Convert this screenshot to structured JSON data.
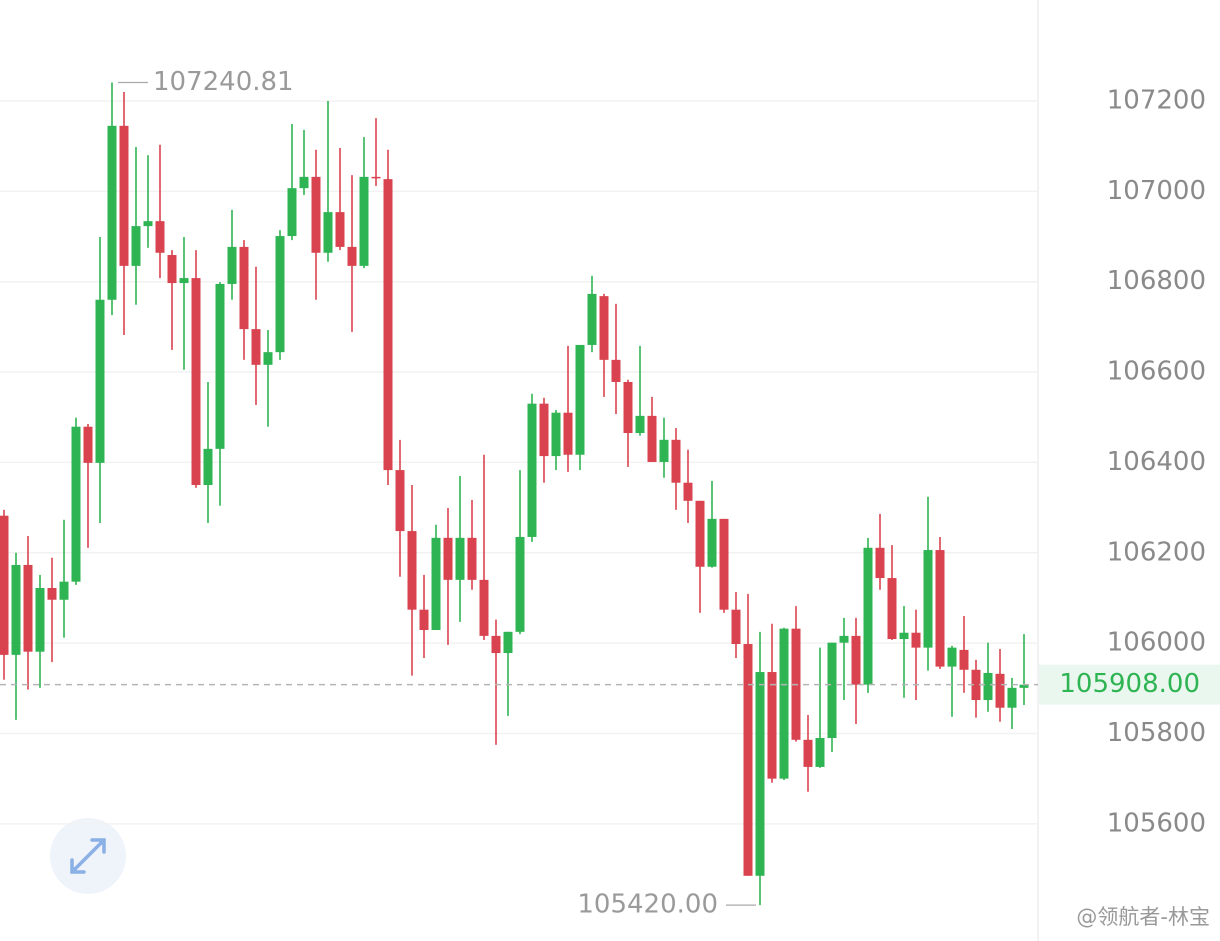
{
  "chart_data": {
    "type": "candlestick",
    "open": [
      106282,
      105974,
      106173,
      105981,
      106122,
      106096,
      106136,
      106479,
      106399,
      106760,
      107145,
      106835,
      106923,
      106934,
      106859,
      106797,
      106808,
      106350,
      106430,
      106795,
      106877,
      106695,
      106616,
      106644,
      106901,
      107007,
      107032,
      106864,
      106954,
      106877,
      106835,
      107032,
      107027,
      106383,
      106248,
      106074,
      106029,
      106233,
      106140,
      106233,
      106140,
      106016,
      105978,
      106025,
      106235,
      106530,
      106414,
      106510,
      106417,
      106660,
      106768,
      106627,
      106578,
      106465,
      106503,
      106401,
      106450,
      106355,
      106315,
      106169,
      106275,
      106074,
      105998,
      105485,
      105936,
      105700,
      106032,
      105786,
      105726,
      105790,
      106001,
      106016,
      105908,
      106211,
      106144,
      106009,
      106023,
      105990,
      106206,
      105948,
      105985,
      105941,
      105874,
      105932,
      105857,
      105901
    ],
    "high": [
      106295,
      106200,
      106237,
      106151,
      106189,
      106273,
      106499,
      106485,
      106899,
      107240.81,
      107220,
      107098,
      107080,
      107103,
      106870,
      106899,
      106870,
      106578,
      106799,
      106959,
      106892,
      106833,
      106693,
      106914,
      107149,
      107136,
      107092,
      107200,
      107096,
      107036,
      107120,
      107162,
      107092,
      106450,
      106350,
      106151,
      106262,
      106299,
      106370,
      106317,
      106417,
      106052,
      106025,
      106383,
      106552,
      106543,
      106516,
      106658,
      106660,
      106813,
      106773,
      106751,
      106583,
      106658,
      106545,
      106499,
      106476,
      106428,
      106315,
      106359,
      106275,
      106113,
      106109,
      106025,
      106043,
      106034,
      106082,
      105841,
      105990,
      106001,
      106056,
      106056,
      106233,
      106286,
      106217,
      106082,
      106074,
      106324,
      106235,
      105994,
      106060,
      105963,
      106001,
      105987,
      105923,
      106020
    ],
    "low": [
      105919,
      105830,
      105897,
      105901,
      105958,
      106012,
      106129,
      106211,
      106266,
      106726,
      106682,
      106749,
      106875,
      106808,
      106649,
      106605,
      106344,
      106266,
      106304,
      106760,
      106627,
      106527,
      106479,
      106627,
      106892,
      106992,
      106760,
      106844,
      106870,
      106689,
      106830,
      107012,
      106350,
      106147,
      105928,
      105967,
      106029,
      105996,
      106047,
      106118,
      106007,
      105775,
      105839,
      106020,
      106224,
      106355,
      106383,
      106379,
      106383,
      106644,
      106545,
      106507,
      106390,
      106459,
      106401,
      106366,
      106295,
      106266,
      106067,
      106167,
      106067,
      105967,
      105485,
      105420,
      105691,
      105697,
      105782,
      105671,
      105724,
      105759,
      105874,
      105821,
      105890,
      106118,
      106007,
      105879,
      105874,
      105939,
      105943,
      105837,
      105890,
      105835,
      105848,
      105826,
      105810,
      105863
    ],
    "close": [
      105974,
      106173,
      105981,
      106122,
      106096,
      106136,
      106479,
      106399,
      106760,
      107145,
      106835,
      106923,
      106934,
      106864,
      106797,
      106808,
      106350,
      106430,
      106795,
      106877,
      106695,
      106616,
      106644,
      106901,
      107007,
      107032,
      106864,
      106954,
      106877,
      106835,
      107032,
      107030,
      106383,
      106248,
      106074,
      106029,
      106233,
      106140,
      106233,
      106140,
      106016,
      105978,
      106025,
      106235,
      106530,
      106414,
      106510,
      106417,
      106660,
      106773,
      106627,
      106578,
      106465,
      106503,
      106401,
      106450,
      106355,
      106315,
      106169,
      106275,
      106074,
      105998,
      105485,
      105936,
      105700,
      106032,
      105786,
      105726,
      105790,
      106001,
      106016,
      105908,
      106211,
      106144,
      106009,
      106023,
      105990,
      106206,
      105948,
      105990,
      105941,
      105874,
      105934,
      105857,
      105901,
      105908
    ],
    "up_color": "#2fb453",
    "down_color": "#d9434f",
    "ylim": [
      105365,
      107423.5
    ],
    "yticks": [
      105600,
      105800,
      106000,
      106200,
      106400,
      106600,
      106800,
      107000,
      107200
    ],
    "grid": true,
    "high_label": "107240.81",
    "low_label": "105420.00",
    "last_label": "105908.00",
    "watermark": "@领航者-林宝"
  }
}
